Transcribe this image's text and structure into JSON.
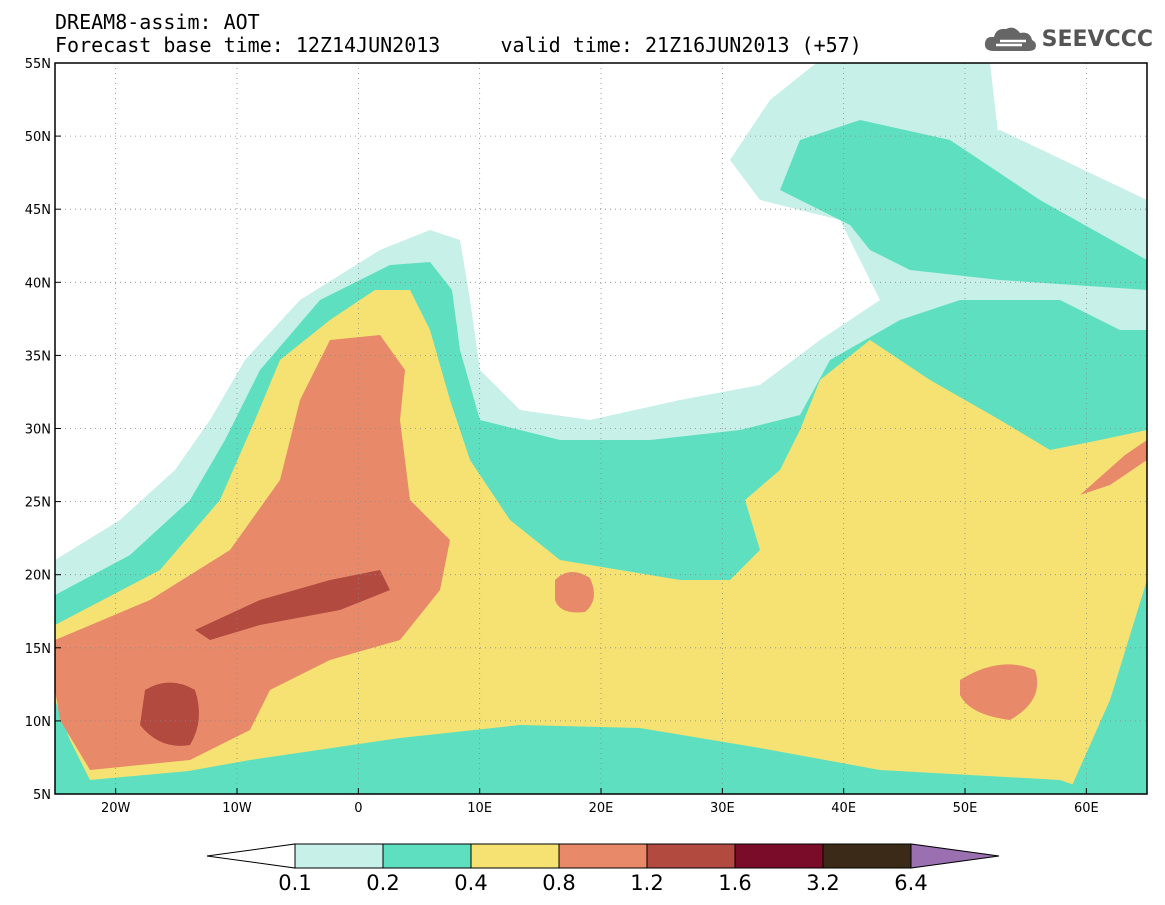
{
  "title": {
    "line1": "DREAM8-assim: AOT",
    "line2": "Forecast base time: 12Z14JUN2013     valid time: 21Z16JUN2013 (+57)"
  },
  "logo": {
    "text": "SEEVCCC",
    "icon": "cloud-icon"
  },
  "map": {
    "lon_range": [
      -25,
      65
    ],
    "lat_range": [
      5,
      55
    ],
    "lon_ticks": [
      {
        "value": -20,
        "label": "20W"
      },
      {
        "value": -10,
        "label": "10W"
      },
      {
        "value": 0,
        "label": "0"
      },
      {
        "value": 10,
        "label": "10E"
      },
      {
        "value": 20,
        "label": "20E"
      },
      {
        "value": 30,
        "label": "30E"
      },
      {
        "value": 40,
        "label": "40E"
      },
      {
        "value": 50,
        "label": "50E"
      },
      {
        "value": 60,
        "label": "60E"
      }
    ],
    "lat_ticks": [
      {
        "value": 5,
        "label": "5N"
      },
      {
        "value": 10,
        "label": "10N"
      },
      {
        "value": 15,
        "label": "15N"
      },
      {
        "value": 20,
        "label": "20N"
      },
      {
        "value": 25,
        "label": "25N"
      },
      {
        "value": 30,
        "label": "30N"
      },
      {
        "value": 35,
        "label": "35N"
      },
      {
        "value": 40,
        "label": "40N"
      },
      {
        "value": 45,
        "label": "45N"
      },
      {
        "value": 50,
        "label": "50N"
      },
      {
        "value": 55,
        "label": "55N"
      }
    ],
    "grid": true
  },
  "colorbar": {
    "boundaries": [
      "0.1",
      "0.2",
      "0.4",
      "0.8",
      "1.2",
      "1.6",
      "3.2",
      "6.4"
    ],
    "colors": [
      "#ffffff",
      "#c6f0e8",
      "#5ee0c0",
      "#f5e272",
      "#e88a6a",
      "#b24a40",
      "#7a0c2a",
      "#3c2a18",
      "#9a70b0"
    ]
  }
}
